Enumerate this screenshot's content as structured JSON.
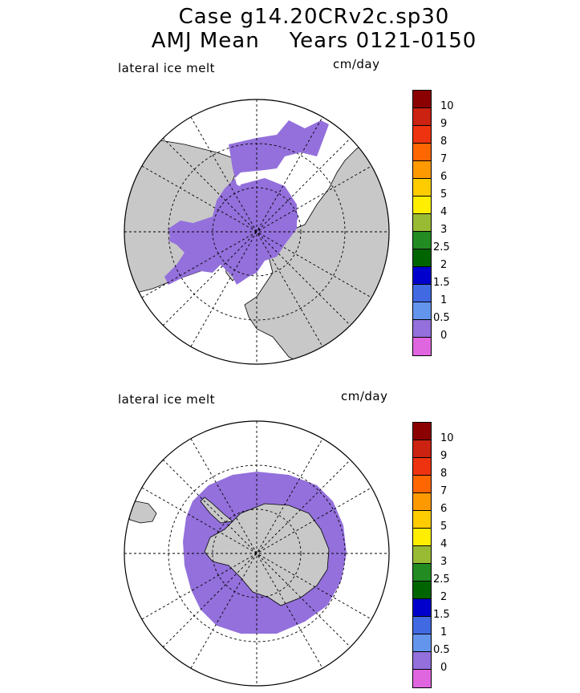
{
  "title": {
    "line1": "Case g14.20CRv2c.sp30",
    "line2": "AMJ Mean    Years 0121-0150"
  },
  "panels": [
    {
      "label": "lateral ice melt",
      "units": "cm/day",
      "hemisphere": "north"
    },
    {
      "label": "lateral ice melt",
      "units": "cm/day",
      "hemisphere": "south"
    }
  ],
  "colorbar": {
    "ticks": [
      "10",
      "9",
      "8",
      "7",
      "6",
      "5",
      "4",
      "3",
      "2.5",
      "2",
      "1.5",
      "1",
      "0.5",
      "0"
    ],
    "colors": [
      "#8b0000",
      "#cc2211",
      "#ee3311",
      "#ff6600",
      "#ff9900",
      "#ffcc00",
      "#ffee00",
      "#99bb33",
      "#228b22",
      "#006400",
      "#0000cc",
      "#4169e1",
      "#6495ed",
      "#9370db",
      "#e066e0"
    ]
  },
  "colors": {
    "land": "#c8c8c8",
    "ice_melt_low": "#9370db",
    "ocean": "#ffffff"
  }
}
